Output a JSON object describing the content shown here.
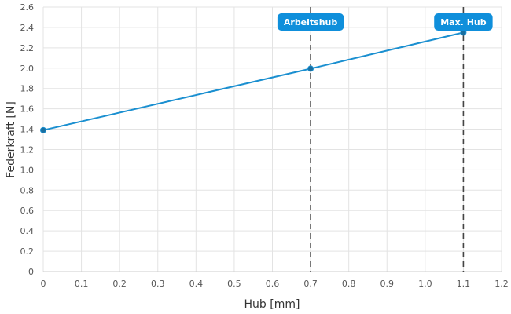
{
  "chart_data": {
    "type": "line",
    "xlabel": "Hub [mm]",
    "ylabel": "Federkraft [N]",
    "xlim": [
      0,
      1.2
    ],
    "ylim": [
      0,
      2.6
    ],
    "x_ticks": [
      0,
      0.1,
      0.2,
      0.3,
      0.4,
      0.5,
      0.6,
      0.7,
      0.8,
      0.9,
      1.0,
      1.1,
      1.2
    ],
    "x_tick_labels": [
      "0",
      "0.1",
      "0.2",
      "0.3",
      "0.4",
      "0.5",
      "0.6",
      "0.7",
      "0.8",
      "0.9",
      "1.0",
      "1.1",
      "1.2"
    ],
    "y_ticks": [
      0,
      0.2,
      0.4,
      0.6,
      0.8,
      1.0,
      1.2,
      1.4,
      1.6,
      1.8,
      2.0,
      2.2,
      2.4,
      2.6
    ],
    "y_tick_labels": [
      "0",
      "0.2",
      "0.4",
      "0.6",
      "0.8",
      "1.0",
      "1.2",
      "1.4",
      "1.6",
      "1.8",
      "2.0",
      "2.2",
      "2.4",
      "2.6"
    ],
    "grid": true,
    "series": [
      {
        "color": "#1a8fd0",
        "points": [
          {
            "x": 0,
            "y": 1.39
          },
          {
            "x": 0.7,
            "y": 1.995
          },
          {
            "x": 1.1,
            "y": 2.35
          }
        ]
      }
    ],
    "markers": [
      {
        "x": 0.7,
        "label": "Arbeitshub"
      },
      {
        "x": 1.1,
        "label": "Max. Hub"
      }
    ],
    "colors": {
      "line": "#1a8fd0",
      "point": "#1a6fa0",
      "marker_line": "#444444",
      "marker_label_bg": "#0f8fdb",
      "grid": "#e3e3e3"
    }
  }
}
